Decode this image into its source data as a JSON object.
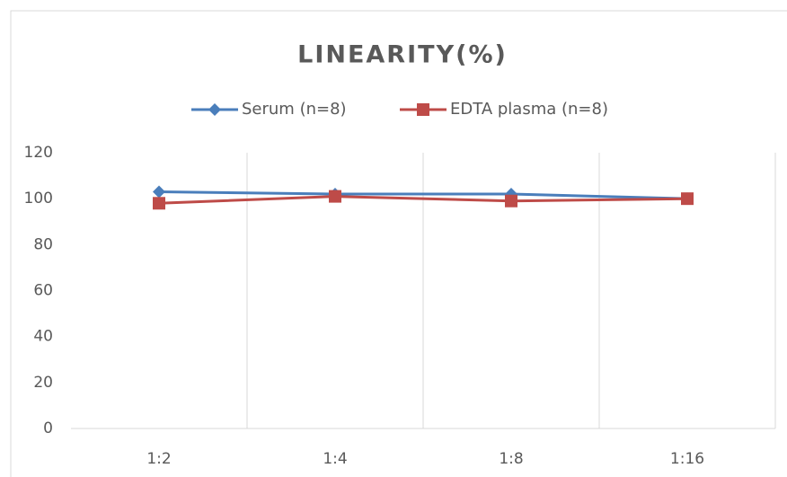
{
  "chart_data": {
    "type": "line",
    "title": "LINEARITY(%)",
    "categories": [
      "1:2",
      "1:4",
      "1:8",
      "1:16"
    ],
    "series": [
      {
        "name": "Serum (n=8)",
        "color": "#4a7ebb",
        "marker": "diamond",
        "values": [
          103,
          102,
          102,
          100
        ]
      },
      {
        "name": "EDTA plasma (n=8)",
        "color": "#be4b48",
        "marker": "square",
        "values": [
          98,
          101,
          99,
          100
        ]
      }
    ],
    "ylim": [
      0,
      120
    ],
    "yticks": [
      0,
      20,
      40,
      60,
      80,
      100,
      120
    ],
    "grid": true,
    "legend": "top"
  }
}
